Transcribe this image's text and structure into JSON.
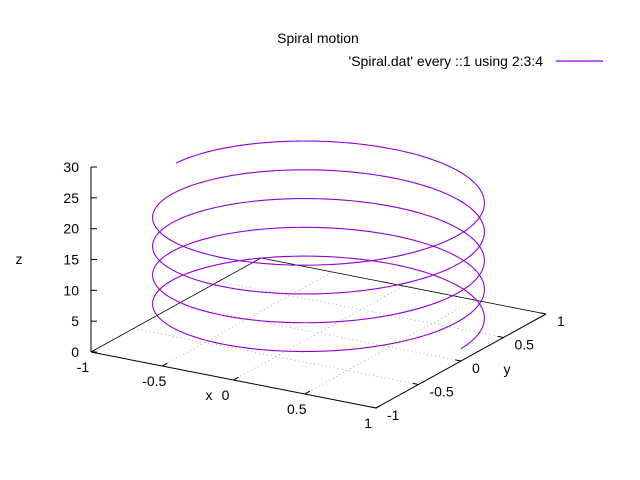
{
  "chart_data": {
    "type": "line",
    "title": "Spiral motion",
    "series": [
      {
        "name": "'Spiral.dat' every ::1 using 2:3:4",
        "color": "#9400d3",
        "turns": 4.5,
        "radius": 1,
        "z_start": 2,
        "z_end": 23
      }
    ],
    "x_axis": {
      "label": "x",
      "range": [
        -1,
        1
      ],
      "ticks": [
        "-1",
        "-0.5",
        "0",
        "0.5",
        "1"
      ]
    },
    "y_axis": {
      "label": "y",
      "range": [
        -1,
        1
      ],
      "ticks": [
        "-1",
        "-0.5",
        "0",
        "0.5",
        "1"
      ]
    },
    "z_axis": {
      "label": "z",
      "range": [
        0,
        30
      ],
      "ticks": [
        "0",
        "5",
        "10",
        "15",
        "20",
        "25",
        "30"
      ]
    },
    "grid": true,
    "legend_position": "top-right"
  }
}
